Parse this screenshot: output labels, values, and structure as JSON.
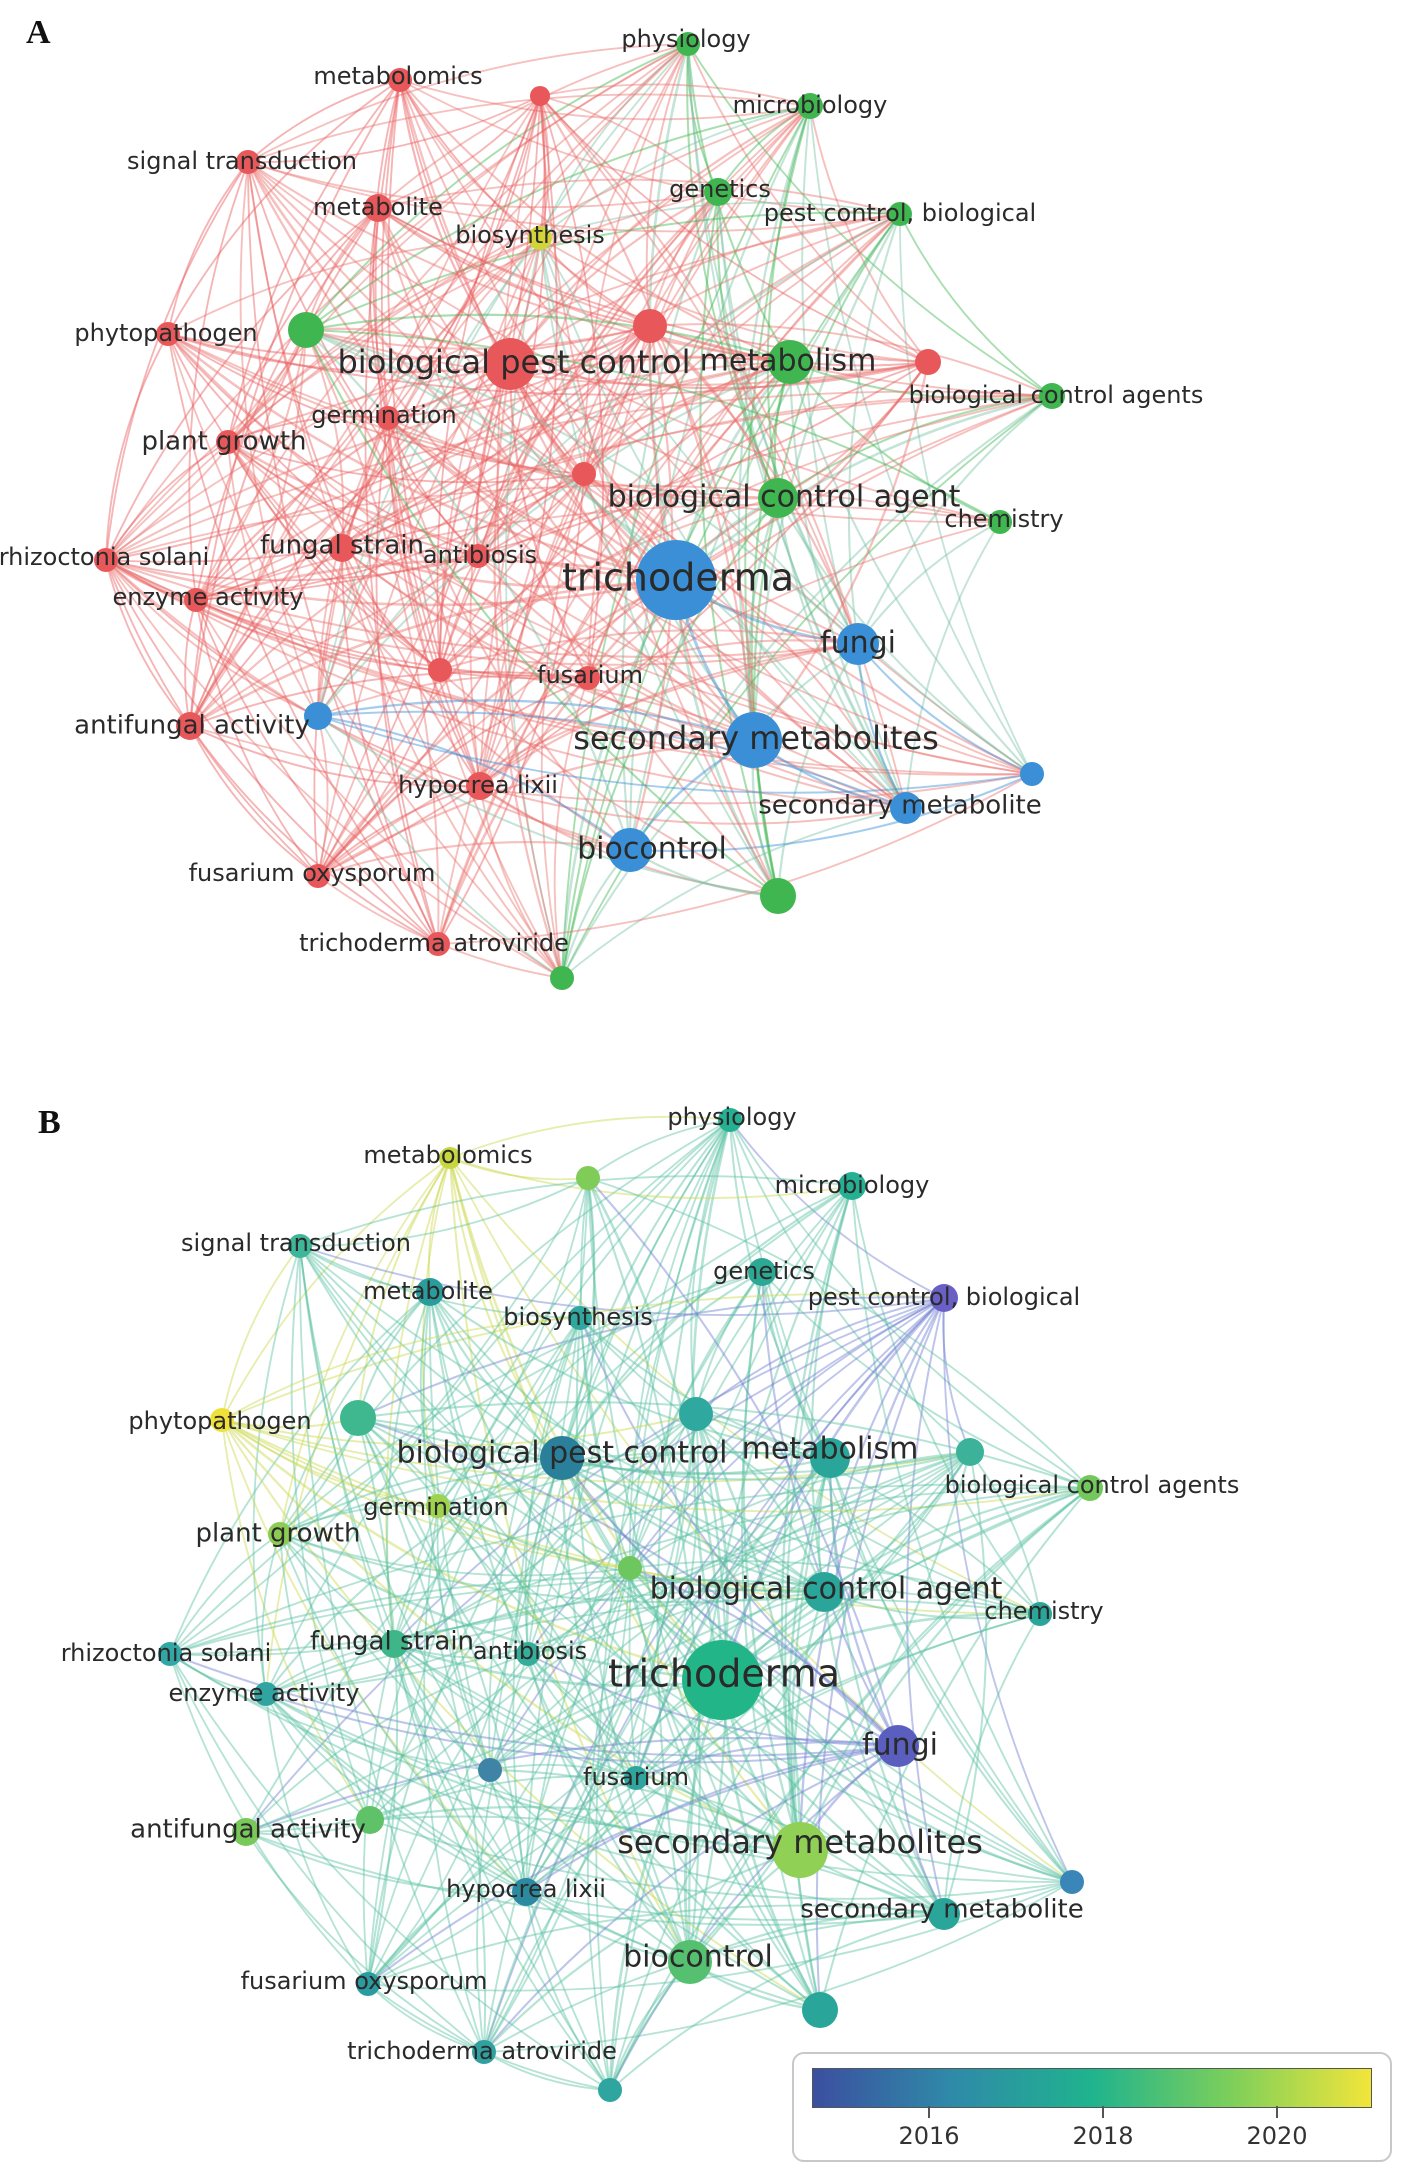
{
  "panels": {
    "a": {
      "label": "A"
    },
    "b": {
      "label": "B"
    }
  },
  "legend": {
    "ticks": [
      "2016",
      "2018",
      "2020"
    ],
    "gradient": [
      "#3b4fa0",
      "#2f8aa8",
      "#1fb38e",
      "#7dcf5a",
      "#f2e53a"
    ]
  },
  "cluster_colors": {
    "red": "#e8585a",
    "green": "#3fb64f",
    "blue": "#3a8fd6",
    "yellow": "#d2d43a"
  },
  "nodes": [
    {
      "id": "physiology",
      "label": "physiology",
      "cluster": "green",
      "year_color": "#25b093"
    },
    {
      "id": "metabolomics",
      "label": "metabolomics",
      "cluster": "red",
      "year_color": "#c8d640"
    },
    {
      "id": "microbiology",
      "label": "microbiology",
      "cluster": "green",
      "year_color": "#25b093"
    },
    {
      "id": "signal_transduction",
      "label": "signal transduction",
      "cluster": "red",
      "year_color": "#3fb59a"
    },
    {
      "id": "genetics",
      "label": "genetics",
      "cluster": "green",
      "year_color": "#2da895"
    },
    {
      "id": "pest_control_biological",
      "label": "pest control, biological",
      "cluster": "green",
      "year_color": "#6a5fc4"
    },
    {
      "id": "metabolite",
      "label": "metabolite",
      "cluster": "red",
      "year_color": "#2a9c9c"
    },
    {
      "id": "biosynthesis",
      "label": "biosynthesis",
      "cluster": "yellow",
      "year_color": "#30a8a0"
    },
    {
      "id": "phytopathogen",
      "label": "phytopathogen",
      "cluster": "red",
      "year_color": "#f0e03a"
    },
    {
      "id": "biological_pest_control",
      "label": "biological pest control",
      "cluster": "red",
      "year_color": "#2a7f9a"
    },
    {
      "id": "metabolism",
      "label": "metabolism",
      "cluster": "green",
      "year_color": "#2aa59a"
    },
    {
      "id": "biological_control_agents",
      "label": "biological control agents",
      "cluster": "green",
      "year_color": "#72c85a"
    },
    {
      "id": "germination",
      "label": "germination",
      "cluster": "red",
      "year_color": "#9fd24e"
    },
    {
      "id": "plant_growth",
      "label": "plant growth",
      "cluster": "red",
      "year_color": "#8ccc52"
    },
    {
      "id": "biological_control_agent",
      "label": "biological control agent",
      "cluster": "green",
      "year_color": "#2aa59a"
    },
    {
      "id": "chemistry",
      "label": "chemistry",
      "cluster": "green",
      "year_color": "#2aa59a"
    },
    {
      "id": "rhizoctonia_solani",
      "label": "rhizoctonia solani",
      "cluster": "red",
      "year_color": "#33a6a6"
    },
    {
      "id": "fungal_strain",
      "label": "fungal strain",
      "cluster": "red",
      "year_color": "#3fb58a"
    },
    {
      "id": "antibiosis",
      "label": "antibiosis",
      "cluster": "red",
      "year_color": "#36ad9a"
    },
    {
      "id": "trichoderma",
      "label": "trichoderma",
      "cluster": "blue",
      "year_color": "#22b588"
    },
    {
      "id": "enzyme_activity",
      "label": "enzyme activity",
      "cluster": "red",
      "year_color": "#30a4a0"
    },
    {
      "id": "fungi",
      "label": "fungi",
      "cluster": "blue",
      "year_color": "#5a5fbf"
    },
    {
      "id": "fusarium",
      "label": "fusarium",
      "cluster": "red",
      "year_color": "#2fa59e"
    },
    {
      "id": "antifungal_activity",
      "label": "antifungal activity",
      "cluster": "red",
      "year_color": "#78c85a"
    },
    {
      "id": "secondary_metabolites",
      "label": "secondary metabolites",
      "cluster": "blue",
      "year_color": "#8fd055"
    },
    {
      "id": "hypocrea_lixii",
      "label": "hypocrea lixii",
      "cluster": "red",
      "year_color": "#2c8aa0"
    },
    {
      "id": "secondary_metabolite",
      "label": "secondary metabolite",
      "cluster": "blue",
      "year_color": "#2aa59a"
    },
    {
      "id": "biocontrol",
      "label": "biocontrol",
      "cluster": "blue",
      "year_color": "#55c070"
    },
    {
      "id": "fusarium_oxysporum",
      "label": "fusarium oxysporum",
      "cluster": "red",
      "year_color": "#2a9ca0"
    },
    {
      "id": "trichoderma_atroviride",
      "label": "trichoderma atroviride",
      "cluster": "red",
      "year_color": "#30a0a0"
    },
    {
      "id": "u1",
      "label": "",
      "cluster": "red",
      "year_color": "#7fcc58"
    },
    {
      "id": "u2",
      "label": "",
      "cluster": "green",
      "year_color": "#3fb890"
    },
    {
      "id": "u3",
      "label": "",
      "cluster": "red",
      "year_color": "#2fa8a0"
    },
    {
      "id": "u4",
      "label": "",
      "cluster": "red",
      "year_color": "#3cb29a"
    },
    {
      "id": "u5",
      "label": "",
      "cluster": "red",
      "year_color": "#6ec65e"
    },
    {
      "id": "u6",
      "label": "",
      "cluster": "red",
      "year_color": "#3f83a6"
    },
    {
      "id": "u7",
      "label": "",
      "cluster": "blue",
      "year_color": "#5fc268"
    },
    {
      "id": "u8",
      "label": "",
      "cluster": "blue",
      "year_color": "#3a86b8"
    },
    {
      "id": "u9",
      "label": "",
      "cluster": "green",
      "year_color": "#2aa59a"
    },
    {
      "id": "u10",
      "label": "",
      "cluster": "green",
      "year_color": "#2fa5a0"
    }
  ]
}
